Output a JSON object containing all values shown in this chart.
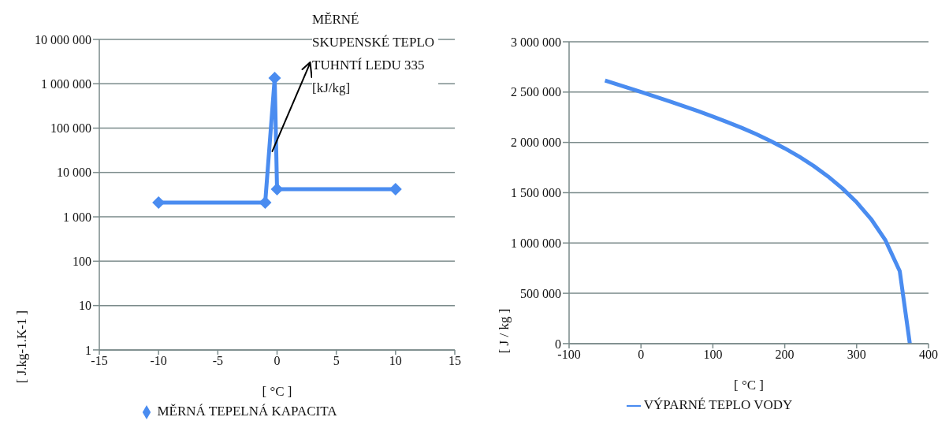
{
  "chart_data": [
    {
      "type": "line",
      "xlabel": "[ °C ]",
      "ylabel": "[ J.kg-1.K-1 ]",
      "log": "y",
      "grid": "y",
      "legend": "bottom",
      "marker": "diamond",
      "line_style": "solid",
      "xlim": [
        -15,
        15
      ],
      "xticks": [
        -15,
        -10,
        -5,
        0,
        5,
        10,
        15
      ],
      "ylim": [
        1,
        10000000
      ],
      "yticks": [
        1,
        10,
        100,
        {
          "value": 1000,
          "label": "1 000"
        },
        {
          "value": 10000,
          "label": "10 000"
        },
        {
          "value": 100000,
          "label": "100 000"
        },
        {
          "value": 1000000,
          "label": "1 000 000"
        },
        {
          "value": 10000000,
          "label": "10 000 000"
        }
      ],
      "annotations": [
        {
          "text": "MĚRNÉ SKUPENSKÉ TEPLO TUHNTÍ LEDU 335 [kJ/kg]",
          "x": -0.4,
          "y": 30000
        }
      ],
      "series": [
        {
          "name": "MĚRNÁ TEPELNÁ KAPACITA",
          "color": "#4a8cf0",
          "x": [
            -10,
            -1,
            -0.2,
            0,
            10
          ],
          "values": [
            2100,
            2100,
            1340000,
            4200,
            4200
          ]
        }
      ]
    },
    {
      "type": "line",
      "xlabel": "[ °C ]",
      "ylabel": "[ J / kg ]",
      "grid": "y",
      "legend": "bottom",
      "marker": "none",
      "line_style": "solid",
      "xlim": [
        -100,
        400
      ],
      "xticks": [
        -100,
        0,
        100,
        200,
        300,
        400
      ],
      "ylim": [
        0,
        3000000
      ],
      "yticks": [
        0,
        {
          "value": 500000,
          "label": "500 000"
        },
        {
          "value": 1000000,
          "label": "1 000 000"
        },
        {
          "value": 1500000,
          "label": "1 500 000"
        },
        {
          "value": 2000000,
          "label": "2 000 000"
        },
        {
          "value": 2500000,
          "label": "2 500 000"
        },
        {
          "value": 3000000,
          "label": "3 000 000"
        }
      ],
      "series": [
        {
          "name": "VÝPARNÉ TEPLO VODY",
          "color": "#4a8cf0",
          "x": [
            -50,
            0,
            20,
            40,
            60,
            80,
            100,
            120,
            140,
            160,
            180,
            200,
            220,
            240,
            260,
            280,
            300,
            320,
            340,
            360,
            374
          ],
          "values": [
            2616000,
            2501000,
            2454000,
            2407000,
            2358000,
            2309000,
            2257000,
            2202000,
            2145000,
            2083000,
            2015000,
            1941000,
            1859000,
            1767000,
            1663000,
            1544000,
            1405000,
            1239000,
            1028000,
            720000,
            0
          ]
        }
      ]
    }
  ]
}
